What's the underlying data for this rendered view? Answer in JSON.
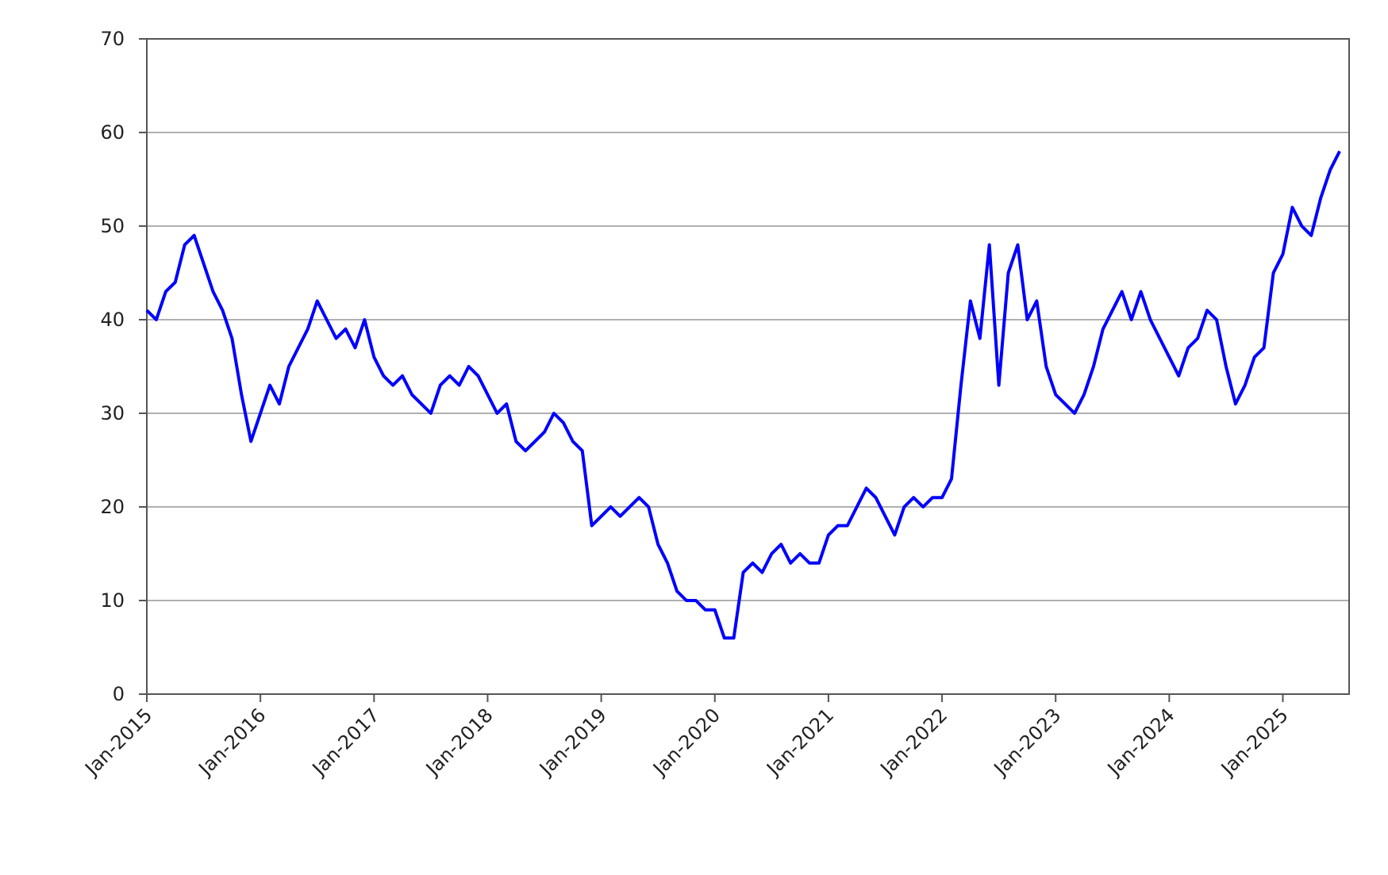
{
  "chart_data": {
    "type": "line",
    "x": [
      "2015-01",
      "2015-02",
      "2015-03",
      "2015-04",
      "2015-05",
      "2015-06",
      "2015-07",
      "2015-08",
      "2015-09",
      "2015-10",
      "2015-11",
      "2015-12",
      "2016-01",
      "2016-02",
      "2016-03",
      "2016-04",
      "2016-05",
      "2016-06",
      "2016-07",
      "2016-08",
      "2016-09",
      "2016-10",
      "2016-11",
      "2016-12",
      "2017-01",
      "2017-02",
      "2017-03",
      "2017-04",
      "2017-05",
      "2017-06",
      "2017-07",
      "2017-08",
      "2017-09",
      "2017-10",
      "2017-11",
      "2017-12",
      "2018-01",
      "2018-02",
      "2018-03",
      "2018-04",
      "2018-05",
      "2018-06",
      "2018-07",
      "2018-08",
      "2018-09",
      "2018-10",
      "2018-11",
      "2018-12",
      "2019-01",
      "2019-02",
      "2019-03",
      "2019-04",
      "2019-05",
      "2019-06",
      "2019-07",
      "2019-08",
      "2019-09",
      "2019-10",
      "2019-11",
      "2019-12",
      "2020-01",
      "2020-02",
      "2020-03",
      "2020-04",
      "2020-05",
      "2020-06",
      "2020-07",
      "2020-08",
      "2020-09",
      "2020-10",
      "2020-11",
      "2020-12",
      "2021-01",
      "2021-02",
      "2021-03",
      "2021-04",
      "2021-05",
      "2021-06",
      "2021-07",
      "2021-08",
      "2021-09",
      "2021-10",
      "2021-11",
      "2021-12",
      "2022-01",
      "2022-02",
      "2022-03",
      "2022-04",
      "2022-05",
      "2022-06",
      "2022-07",
      "2022-08",
      "2022-09",
      "2022-10",
      "2022-11",
      "2022-12",
      "2023-01",
      "2023-02",
      "2023-03",
      "2023-04",
      "2023-05",
      "2023-06",
      "2023-07",
      "2023-08",
      "2023-09",
      "2023-10",
      "2023-11",
      "2023-12",
      "2024-01",
      "2024-02",
      "2024-03",
      "2024-04",
      "2024-05",
      "2024-06",
      "2024-07",
      "2024-08",
      "2024-09",
      "2024-10",
      "2024-11",
      "2024-12",
      "2025-01",
      "2025-02",
      "2025-03",
      "2025-04",
      "2025-05",
      "2025-06",
      "2025-07"
    ],
    "series": [
      {
        "color": "#0000ff",
        "values": [
          41,
          40,
          43,
          44,
          48,
          49,
          46,
          43,
          41,
          38,
          32,
          27,
          30,
          33,
          31,
          35,
          37,
          39,
          42,
          40,
          38,
          39,
          37,
          40,
          36,
          34,
          33,
          34,
          32,
          31,
          30,
          33,
          34,
          33,
          35,
          34,
          32,
          30,
          31,
          27,
          26,
          27,
          28,
          30,
          29,
          27,
          26,
          18,
          19,
          20,
          19,
          20,
          21,
          20,
          16,
          14,
          11,
          10,
          10,
          9,
          9,
          6,
          6,
          13,
          14,
          13,
          15,
          16,
          14,
          15,
          14,
          14,
          17,
          18,
          18,
          20,
          22,
          21,
          19,
          17,
          20,
          21,
          20,
          21,
          21,
          23,
          33,
          42,
          38,
          48,
          33,
          45,
          48,
          40,
          42,
          35,
          32,
          31,
          30,
          32,
          35,
          39,
          41,
          43,
          40,
          43,
          40,
          38,
          36,
          34,
          37,
          38,
          41,
          40,
          35,
          31,
          33,
          36,
          37,
          45,
          47,
          52,
          50,
          49,
          53,
          56,
          58
        ]
      }
    ],
    "xlim": [
      "2015-01",
      "2025-08"
    ],
    "xticks": [
      {
        "value": "2015-01",
        "label": "Jan-2015"
      },
      {
        "value": "2016-01",
        "label": "Jan-2016"
      },
      {
        "value": "2017-01",
        "label": "Jan-2017"
      },
      {
        "value": "2018-01",
        "label": "Jan-2018"
      },
      {
        "value": "2019-01",
        "label": "Jan-2019"
      },
      {
        "value": "2020-01",
        "label": "Jan-2020"
      },
      {
        "value": "2021-01",
        "label": "Jan-2021"
      },
      {
        "value": "2022-01",
        "label": "Jan-2022"
      },
      {
        "value": "2023-01",
        "label": "Jan-2023"
      },
      {
        "value": "2024-01",
        "label": "Jan-2024"
      },
      {
        "value": "2025-01",
        "label": "Jan-2025"
      }
    ],
    "ylim": [
      0,
      70
    ],
    "yticks": [
      0,
      10,
      20,
      30,
      40,
      50,
      60,
      70
    ],
    "grid": true
  }
}
